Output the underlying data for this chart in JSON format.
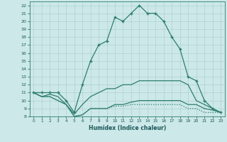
{
  "xlabel": "Humidex (Indice chaleur)",
  "bg_color": "#cce8e8",
  "line_color": "#2d7d70",
  "grid_color": "#aacccc",
  "xlim": [
    -0.5,
    23.5
  ],
  "ylim": [
    8,
    22.5
  ],
  "xticks": [
    0,
    1,
    2,
    3,
    4,
    5,
    6,
    7,
    8,
    9,
    10,
    11,
    12,
    13,
    14,
    15,
    16,
    17,
    18,
    19,
    20,
    21,
    22,
    23
  ],
  "yticks": [
    8,
    9,
    10,
    11,
    12,
    13,
    14,
    15,
    16,
    17,
    18,
    19,
    20,
    21,
    22
  ],
  "curves": [
    {
      "x": [
        0,
        1,
        2,
        3,
        4,
        5,
        6,
        7,
        8,
        9,
        10,
        11,
        12,
        13,
        14,
        15,
        16,
        17,
        18,
        19,
        20,
        21,
        22,
        23
      ],
      "y": [
        11,
        11,
        11,
        11,
        10,
        8.5,
        12,
        15,
        17,
        17.5,
        20.5,
        20,
        21,
        22,
        21,
        21,
        20,
        18,
        16.5,
        13,
        12.5,
        10,
        9,
        8.5
      ],
      "marker": "+",
      "lw": 0.9,
      "dotted": false
    },
    {
      "x": [
        0,
        1,
        2,
        3,
        4,
        5,
        6,
        7,
        8,
        9,
        10,
        11,
        12,
        13,
        14,
        15,
        16,
        17,
        18,
        19,
        20,
        21,
        22,
        23
      ],
      "y": [
        11,
        10.5,
        10.8,
        10.5,
        9.5,
        8.3,
        9.5,
        10.5,
        11,
        11.5,
        11.5,
        12,
        12,
        12.5,
        12.5,
        12.5,
        12.5,
        12.5,
        12.5,
        12,
        10,
        9.5,
        9,
        8.5
      ],
      "marker": null,
      "lw": 0.9,
      "dotted": false
    },
    {
      "x": [
        0,
        1,
        2,
        3,
        4,
        5,
        6,
        7,
        8,
        9,
        10,
        11,
        12,
        13,
        14,
        15,
        16,
        17,
        18,
        19,
        20,
        21,
        22,
        23
      ],
      "y": [
        11,
        10.5,
        10.5,
        10,
        9.5,
        8,
        8.2,
        9,
        9,
        9,
        9.5,
        9.5,
        9.8,
        10,
        10,
        10,
        10,
        10,
        10,
        9.5,
        9.5,
        9,
        8.8,
        8.5
      ],
      "marker": null,
      "lw": 0.9,
      "dotted": false
    },
    {
      "x": [
        0,
        1,
        2,
        3,
        4,
        5,
        6,
        7,
        8,
        9,
        10,
        11,
        12,
        13,
        14,
        15,
        16,
        17,
        18,
        19,
        20,
        21,
        22,
        23
      ],
      "y": [
        11,
        10.5,
        10.5,
        10,
        9.5,
        8,
        8.2,
        9,
        9,
        9,
        9.3,
        9.3,
        9.5,
        9.5,
        9.5,
        9.5,
        9.5,
        9.5,
        9.5,
        9,
        9,
        8.5,
        8.5,
        8.5
      ],
      "marker": null,
      "lw": 0.9,
      "dotted": true
    }
  ]
}
